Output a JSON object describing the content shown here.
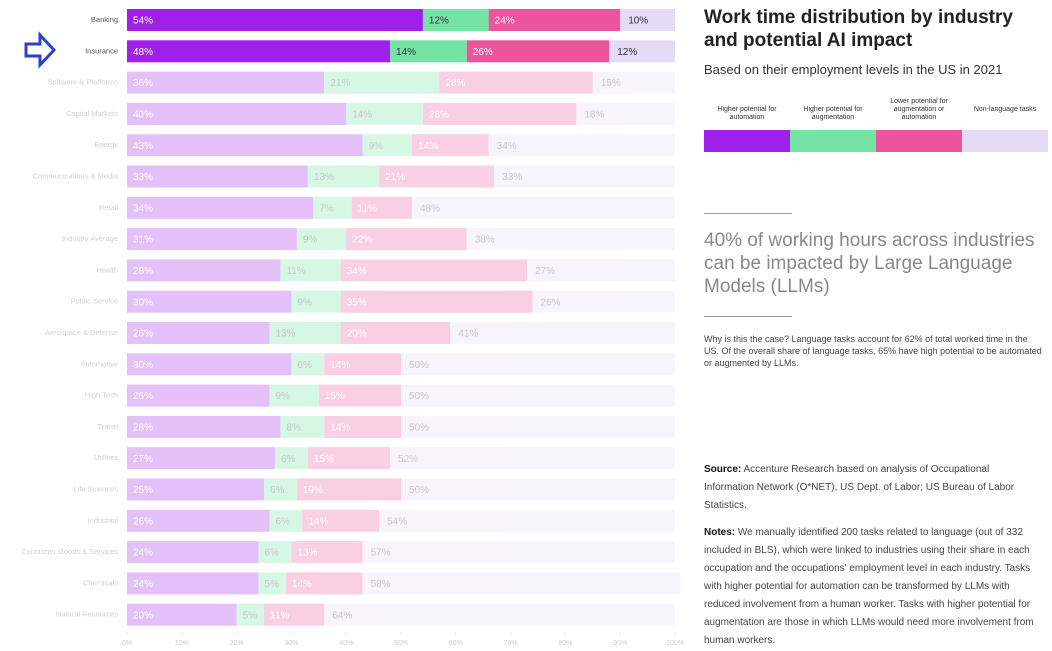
{
  "chart_data": {
    "type": "stacked_barh",
    "title": "Work time distribution by industry and potential AI impact",
    "subtitle": "Based on their employment levels in the US in 2021",
    "categories": [
      "Banking",
      "Insurance",
      "Software & Platforms",
      "Capital Markets",
      "Energy",
      "Communications & Media",
      "Retail",
      "Industry Average",
      "Health",
      "Public Service",
      "Aerospace & Defense",
      "Automotive",
      "High Tech",
      "Travel",
      "Utilities",
      "Life Sciences",
      "Industrial",
      "Consumer Goods & Services",
      "Chemicals",
      "Natural Resources"
    ],
    "series": [
      {
        "name": "Higher potential for automation",
        "color": "#a020ea",
        "values": [
          54,
          48,
          36,
          40,
          43,
          33,
          34,
          31,
          28,
          30,
          26,
          30,
          26,
          28,
          27,
          25,
          26,
          24,
          24,
          20
        ],
        "value_labels": [
          "54%",
          "48%",
          "36%",
          "40%",
          "43%",
          "33%",
          "34%",
          "31%",
          "28%",
          "30%",
          "26%",
          "30%",
          "26%",
          "28%",
          "27%",
          "25%",
          "26%",
          "24%",
          "24%",
          "20%"
        ]
      },
      {
        "name": "Higher potential for augmentation",
        "color": "#74e3a4",
        "values": [
          12,
          14,
          21,
          14,
          9,
          13,
          7,
          9,
          11,
          9,
          13,
          6,
          9,
          8,
          6,
          6,
          6,
          6,
          5,
          5
        ],
        "value_labels": [
          "12%",
          "14%",
          "21%",
          "14%",
          "9%",
          "13%",
          "7%",
          "9%",
          "11%",
          "9%",
          "13%",
          "6%",
          "9%",
          "8%",
          "6%",
          "6%",
          "6%",
          "6%",
          "5%",
          "5%"
        ]
      },
      {
        "name": "Lower potential for augmentation or automation",
        "color": "#ea559c",
        "values": [
          24,
          26,
          28,
          28,
          14,
          21,
          11,
          22,
          34,
          35,
          20,
          14,
          15,
          14,
          15,
          19,
          14,
          13,
          14,
          11
        ],
        "value_labels": [
          "24%",
          "26%",
          "28%",
          "28%",
          "14%",
          "21%",
          "11%",
          "22%",
          "34%",
          "35%",
          "20%",
          "14%",
          "15%",
          "14%",
          "15%",
          "19%",
          "14%",
          "13%",
          "14%",
          "11%"
        ]
      },
      {
        "name": "Non-language tasks",
        "color": "#e4dbf6",
        "values": [
          10,
          12,
          15,
          18,
          34,
          33,
          48,
          38,
          27,
          26,
          41,
          50,
          50,
          50,
          52,
          50,
          54,
          57,
          58,
          64
        ],
        "value_labels": [
          "10%",
          "12%",
          "15%",
          "18%",
          "34%",
          "33%",
          "48%",
          "38%",
          "27%",
          "26%",
          "41%",
          "50%",
          "50%",
          "50%",
          "52%",
          "50%",
          "54%",
          "57%",
          "58%",
          "64%"
        ]
      }
    ],
    "xlim": [
      0,
      100
    ],
    "xticks": [
      {
        "value": 0,
        "label": "0%"
      },
      {
        "value": 10,
        "label": "10%"
      },
      {
        "value": 20,
        "label": "20%"
      },
      {
        "value": 30,
        "label": "30%"
      },
      {
        "value": 40,
        "label": "40%"
      },
      {
        "value": 50,
        "label": "50%"
      },
      {
        "value": 60,
        "label": "60%"
      },
      {
        "value": 70,
        "label": "70%"
      },
      {
        "value": 80,
        "label": "80%"
      },
      {
        "value": 90,
        "label": "90%"
      },
      {
        "value": 100,
        "label": "100%"
      }
    ],
    "headline": "40% of working hours across industries can be impacted by Large Language Models (LLMs)",
    "explanation": "Why is this the case? Language tasks account for 62% of total worked time in the US. Of the overall share of language tasks, 65% have high potential to be automated or augmented by LLMs.",
    "source_label": "Source:",
    "source": "Accenture Research based on analysis of Occupational Information Network (O*NET), US Dept. of Labor; US Bureau of Labor Statistics.",
    "notes_label": "Notes:",
    "notes": "We manually identified 200 tasks related to language (out of 332 included in BLS), which were linked to industries using their share in each occupation and the occupations' employment level in each industry. Tasks with higher potential for automation can be transformed by LLMs with reduced involvement from a human worker. Tasks with higher potential for augmentation are those in which LLMs would need more involvement from human workers."
  }
}
